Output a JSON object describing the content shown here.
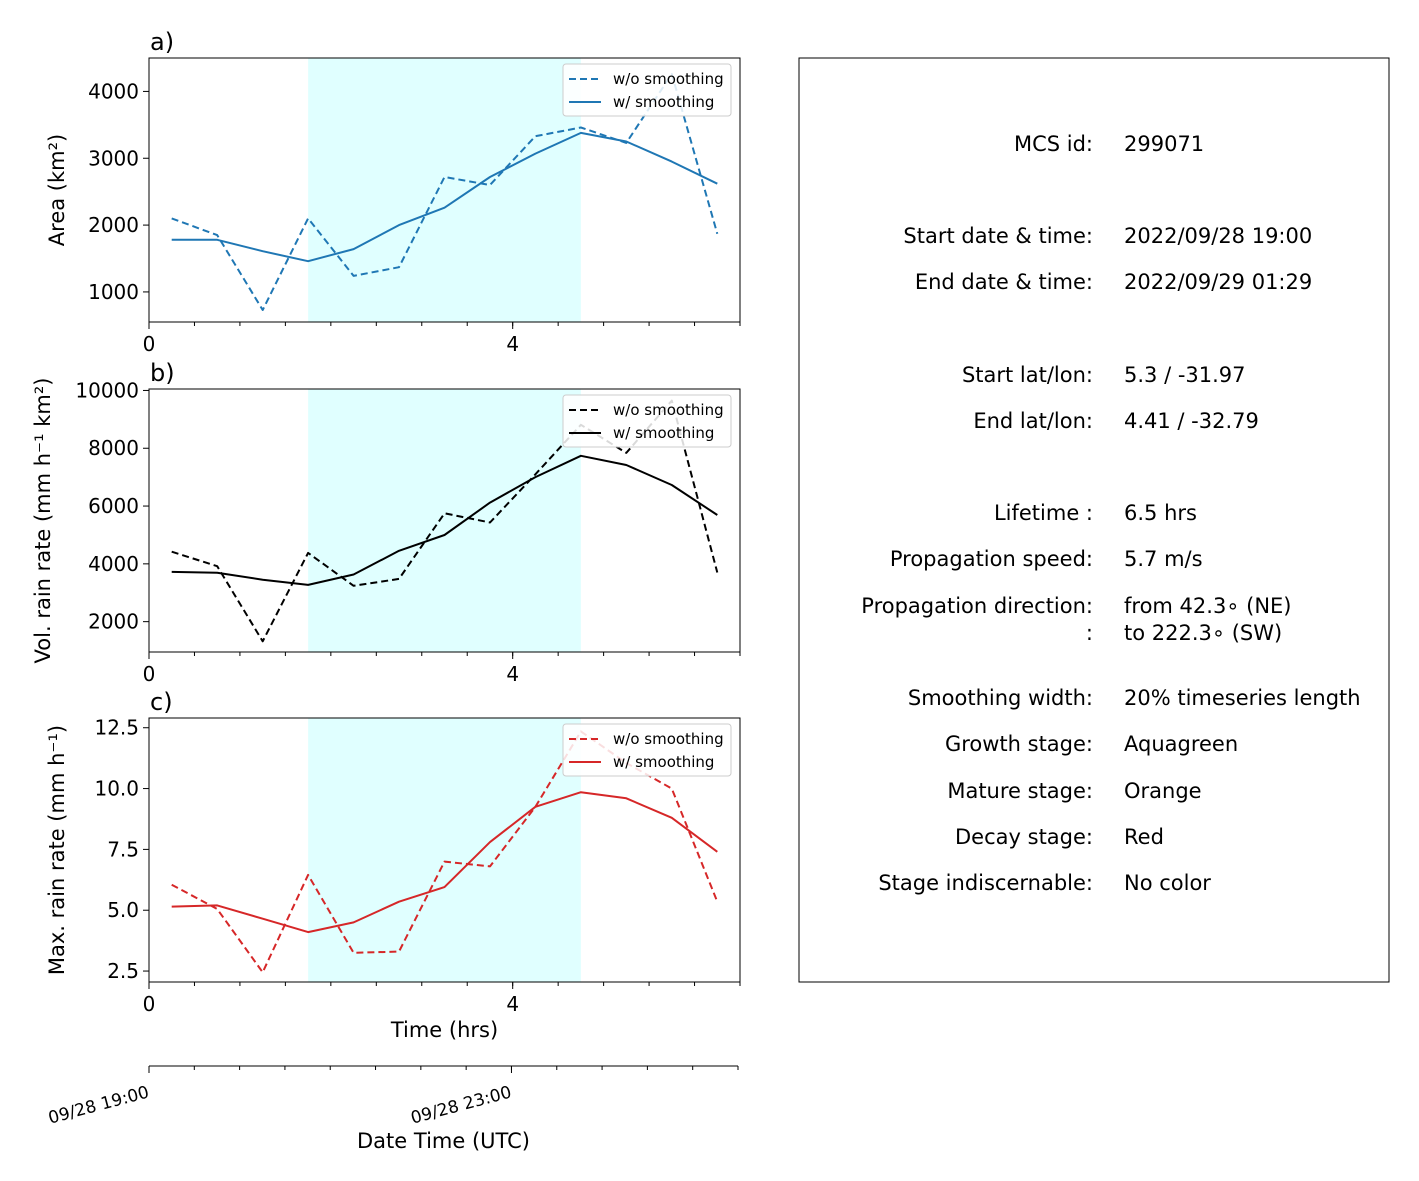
{
  "chart_data": [
    {
      "type": "line",
      "panel_label": "a)",
      "ylabel": "Area  (km²)",
      "xlim": [
        0,
        6.5
      ],
      "ylim": [
        550,
        4500
      ],
      "yticks": [
        1000,
        2000,
        3000,
        4000
      ],
      "xticks": [
        0,
        4
      ],
      "x_minor_step": 0.5,
      "grid": false,
      "legend": "top-right",
      "color": "#1f77b4",
      "highlight_span": [
        1.75,
        4.75
      ],
      "highlight_color": "#e0ffff",
      "x": [
        0.25,
        0.75,
        1.25,
        1.75,
        2.25,
        2.75,
        3.25,
        3.75,
        4.25,
        4.75,
        5.25,
        5.75,
        6.25
      ],
      "series": [
        {
          "name": "w/o smoothing",
          "style": "dashed",
          "values": [
            2100,
            1850,
            730,
            2100,
            1240,
            1370,
            2720,
            2600,
            3330,
            3460,
            3230,
            4260,
            1870
          ]
        },
        {
          "name": "w/ smoothing",
          "style": "solid",
          "values": [
            1780,
            1780,
            1610,
            1460,
            1640,
            2000,
            2260,
            2720,
            3070,
            3380,
            3250,
            2950,
            2620
          ]
        }
      ]
    },
    {
      "type": "line",
      "panel_label": "b)",
      "ylabel": "Vol. rain rate (mm h⁻¹ km²)",
      "xlim": [
        0,
        6.5
      ],
      "ylim": [
        950,
        10050
      ],
      "yticks": [
        2000,
        4000,
        6000,
        8000,
        10000
      ],
      "xticks": [
        0,
        4
      ],
      "x_minor_step": 0.5,
      "grid": false,
      "legend": "top-right",
      "color": "#000000",
      "highlight_span": [
        1.75,
        4.75
      ],
      "highlight_color": "#e0ffff",
      "x": [
        0.25,
        0.75,
        1.25,
        1.75,
        2.25,
        2.75,
        3.25,
        3.75,
        4.25,
        4.75,
        5.25,
        5.75,
        6.25
      ],
      "series": [
        {
          "name": "w/o smoothing",
          "style": "dashed",
          "values": [
            4420,
            3920,
            1320,
            4380,
            3240,
            3480,
            5750,
            5430,
            7100,
            8810,
            7840,
            9650,
            3700
          ]
        },
        {
          "name": "w/ smoothing",
          "style": "solid",
          "values": [
            3720,
            3690,
            3450,
            3270,
            3630,
            4450,
            5000,
            6120,
            7000,
            7740,
            7420,
            6730,
            5690
          ]
        }
      ]
    },
    {
      "type": "line",
      "panel_label": "c)",
      "ylabel": "Max. rain rate  (mm h⁻¹)",
      "xlabel": "Time (hrs)",
      "xlim": [
        0,
        6.5
      ],
      "ylim": [
        2.05,
        12.9
      ],
      "yticks": [
        2.5,
        5.0,
        7.5,
        10.0,
        12.5
      ],
      "ytick_labels": [
        "2.5",
        "5.0",
        "7.5",
        "10.0",
        "12.5"
      ],
      "xticks": [
        0,
        4
      ],
      "x_minor_step": 0.5,
      "grid": false,
      "legend": "top-right",
      "color": "#d62728",
      "highlight_span": [
        1.75,
        4.75
      ],
      "highlight_color": "#e0ffff",
      "x": [
        0.25,
        0.75,
        1.25,
        1.75,
        2.25,
        2.75,
        3.25,
        3.75,
        4.25,
        4.75,
        5.25,
        5.75,
        6.25
      ],
      "series": [
        {
          "name": "w/o smoothing",
          "style": "dashed",
          "values": [
            6.05,
            5.05,
            2.45,
            6.45,
            3.25,
            3.3,
            7.0,
            6.8,
            9.25,
            12.35,
            11.05,
            10.0,
            5.35
          ]
        },
        {
          "name": "w/ smoothing",
          "style": "solid",
          "values": [
            5.15,
            5.2,
            4.65,
            4.1,
            4.5,
            5.35,
            5.95,
            7.8,
            9.25,
            9.85,
            9.6,
            8.8,
            7.4
          ]
        }
      ]
    }
  ],
  "datetime_axis": {
    "xlabel": "Date Time (UTC)",
    "ticks": [
      {
        "x": 0,
        "label": "09/28 19:00"
      },
      {
        "x": 4,
        "label": "09/28 23:00"
      }
    ],
    "minor_step": 0.5
  },
  "info": {
    "rows": [
      {
        "key": "MCS id:",
        "value": "299071"
      },
      {
        "key": "Start date & time:",
        "value": "2022/09/28 19:00"
      },
      {
        "key": "End date & time:",
        "value": "2022/09/29 01:29"
      },
      {
        "key": "Start lat/lon:",
        "value": "5.3 / -31.97"
      },
      {
        "key": "End lat/lon:",
        "value": "4.41 / -32.79"
      },
      {
        "key": "Lifetime :",
        "value": "6.5 hrs"
      },
      {
        "key": "Propagation speed:",
        "value": "5.7 m/s"
      },
      {
        "key": "Propagation direction:",
        "value": "from  42.3∘ (NE)"
      },
      {
        "key": ":",
        "value": "to   222.3∘ (SW)"
      },
      {
        "key": "Smoothing width:",
        "value": "20% timeseries length"
      },
      {
        "key": "Growth stage:",
        "value": "Aquagreen"
      },
      {
        "key": "Mature stage:",
        "value": "Orange"
      },
      {
        "key": "Decay stage:",
        "value": "Red"
      },
      {
        "key": "Stage indiscernable:",
        "value": "No color"
      }
    ]
  }
}
